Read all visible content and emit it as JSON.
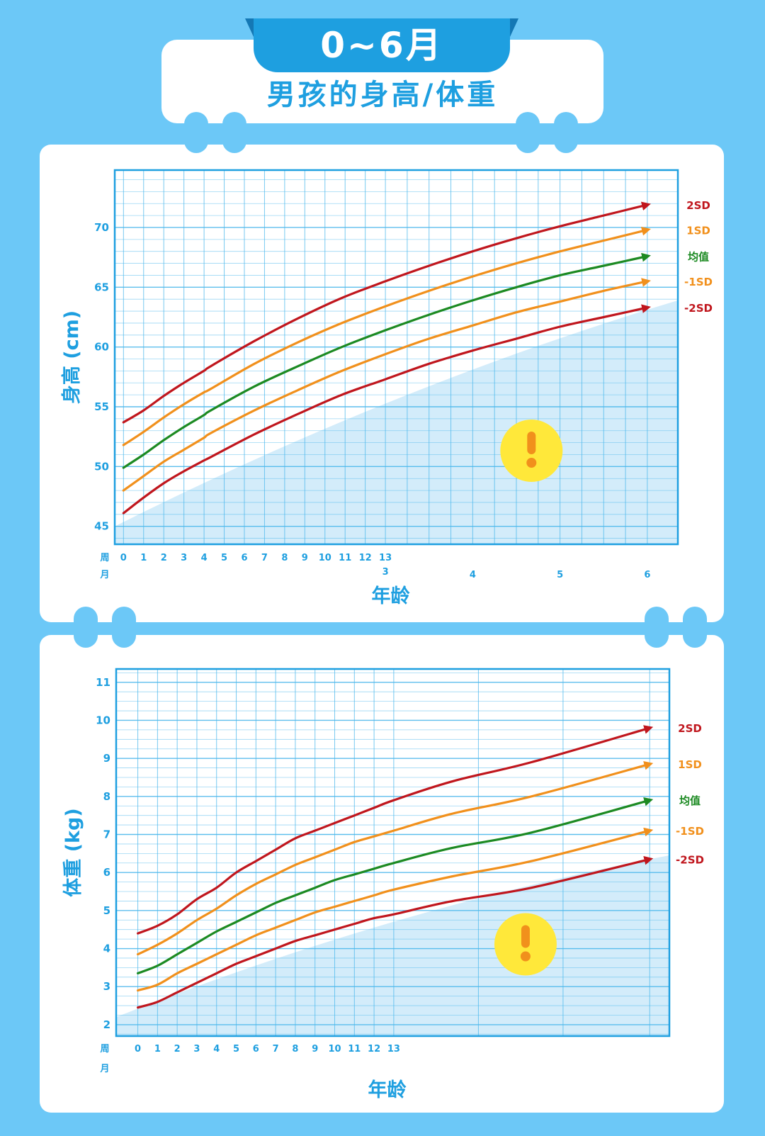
{
  "header": {
    "period": "0~6月",
    "subtitle": "男孩的身高/体重"
  },
  "colors": {
    "2SD": "#c0161d",
    "1SD": "#f1901c",
    "mean": "#1c8a22",
    "-1SD": "#f1901c",
    "-2SD": "#c0161d",
    "axis": "#1e9fe0",
    "grid": "#4cb8ec",
    "shade": "#d3ecfa",
    "alert": "#ffe83a",
    "alert_mark": "#f1901c"
  },
  "axis_rows": {
    "week": "周",
    "month": "月"
  },
  "chart_data": [
    {
      "type": "line",
      "ylabel": "身高 (cm)",
      "xlabel": "年龄",
      "y_ticks": [
        45,
        50,
        55,
        60,
        65,
        70
      ],
      "ylim": [
        43.5,
        74.8
      ],
      "xlim_months": [
        -0.1,
        6.35
      ],
      "week_ticks": [
        0,
        1,
        2,
        3,
        4,
        5,
        6,
        7,
        8,
        9,
        10,
        11,
        12,
        13
      ],
      "month_ticks": [
        3,
        4,
        5,
        6
      ],
      "x_months": [
        0,
        0.23,
        0.46,
        0.69,
        0.92,
        1,
        1.5,
        2,
        2.5,
        3,
        3.5,
        4,
        4.5,
        5,
        5.5,
        6
      ],
      "series": [
        {
          "name": "2SD",
          "values": [
            53.7,
            54.7,
            55.9,
            57.0,
            58.0,
            58.4,
            60.5,
            62.4,
            64.1,
            65.5,
            66.8,
            68.0,
            69.1,
            70.1,
            71.0,
            71.9
          ]
        },
        {
          "name": "1SD",
          "values": [
            51.8,
            52.9,
            54.1,
            55.2,
            56.2,
            56.5,
            58.6,
            60.4,
            62.0,
            63.4,
            64.7,
            65.9,
            67.0,
            68.0,
            68.9,
            69.8
          ]
        },
        {
          "name": "均值",
          "values": [
            49.9,
            51.0,
            52.2,
            53.3,
            54.3,
            54.7,
            56.7,
            58.4,
            60.0,
            61.4,
            62.7,
            63.9,
            65.0,
            66.0,
            66.8,
            67.6
          ]
        },
        {
          "name": "-1SD",
          "values": [
            48.0,
            49.2,
            50.4,
            51.4,
            52.4,
            52.8,
            54.7,
            56.4,
            58.0,
            59.4,
            60.7,
            61.8,
            62.9,
            63.8,
            64.7,
            65.5
          ]
        },
        {
          "name": "-2SD",
          "values": [
            46.1,
            47.4,
            48.6,
            49.6,
            50.5,
            50.8,
            52.7,
            54.4,
            56.0,
            57.3,
            58.6,
            59.7,
            60.7,
            61.7,
            62.5,
            63.3
          ]
        }
      ],
      "shade_boundary": [
        45.0,
        63.9
      ]
    },
    {
      "type": "line",
      "ylabel": "体重 (kg)",
      "xlabel": "年龄",
      "y_ticks": [
        2,
        3,
        4,
        5,
        6,
        7,
        8,
        9,
        10,
        11
      ],
      "ylim": [
        1.7,
        11.35
      ],
      "xlim_weeks": [
        -1.1,
        27.0
      ],
      "week_ticks": [
        0,
        1,
        2,
        3,
        4,
        5,
        6,
        7,
        8,
        9,
        10,
        11,
        12,
        13
      ],
      "x_weeks": [
        0,
        1,
        2,
        3,
        4,
        5,
        6,
        7,
        8,
        9,
        10,
        11,
        12,
        13,
        16,
        20,
        26
      ],
      "series": [
        {
          "name": "2SD",
          "values": [
            4.4,
            4.6,
            4.9,
            5.3,
            5.6,
            6.0,
            6.3,
            6.6,
            6.9,
            7.1,
            7.3,
            7.5,
            7.7,
            7.9,
            8.4,
            8.9,
            9.8
          ]
        },
        {
          "name": "1SD",
          "values": [
            3.85,
            4.1,
            4.4,
            4.75,
            5.05,
            5.4,
            5.7,
            5.95,
            6.2,
            6.4,
            6.6,
            6.8,
            6.95,
            7.1,
            7.55,
            8.0,
            8.85
          ]
        },
        {
          "name": "均值",
          "values": [
            3.35,
            3.55,
            3.85,
            4.15,
            4.45,
            4.7,
            4.95,
            5.2,
            5.4,
            5.6,
            5.8,
            5.95,
            6.1,
            6.25,
            6.65,
            7.05,
            7.9
          ]
        },
        {
          "name": "-1SD",
          "values": [
            2.9,
            3.05,
            3.35,
            3.6,
            3.85,
            4.1,
            4.35,
            4.55,
            4.75,
            4.95,
            5.1,
            5.25,
            5.4,
            5.55,
            5.9,
            6.3,
            7.1
          ]
        },
        {
          "name": "-2SD",
          "values": [
            2.45,
            2.6,
            2.85,
            3.1,
            3.35,
            3.6,
            3.8,
            4.0,
            4.2,
            4.35,
            4.5,
            4.65,
            4.8,
            4.9,
            5.25,
            5.6,
            6.35
          ]
        }
      ],
      "shade_boundary": [
        2.2,
        6.45
      ]
    }
  ]
}
